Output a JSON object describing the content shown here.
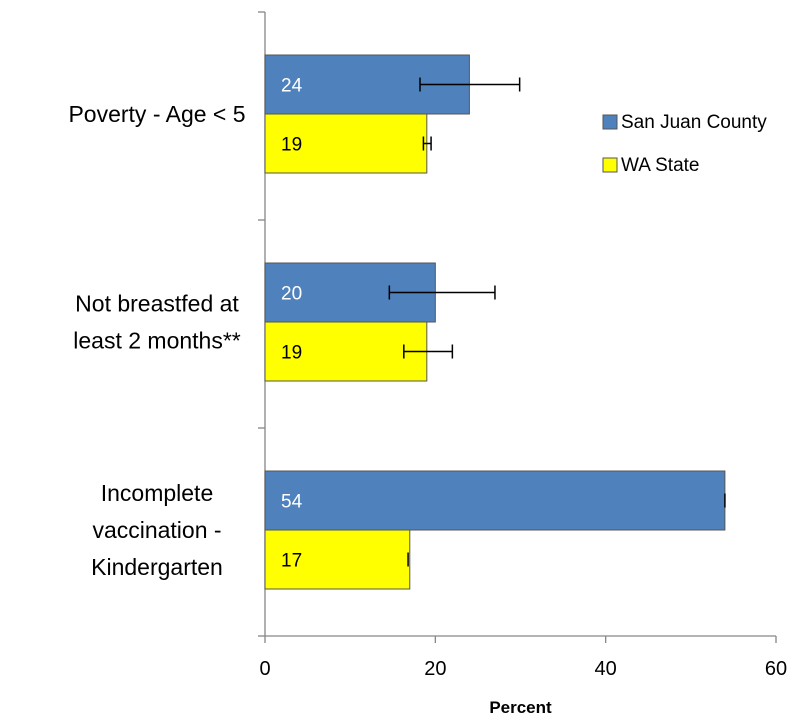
{
  "chart_data": {
    "type": "bar",
    "orientation": "horizontal",
    "categories": [
      [
        "Poverty - Age < 5"
      ],
      [
        "Not breastfed at",
        "least 2 months**"
      ],
      [
        "Incomplete",
        "vaccination -",
        "Kindergarten"
      ]
    ],
    "series": [
      {
        "name": "San Juan County",
        "color": "#4f81bd",
        "label_color": "#ffffff",
        "values": [
          24,
          20,
          54
        ],
        "error_low": [
          18.2,
          14.6,
          54
        ],
        "error_high": [
          29.9,
          27.0,
          54
        ]
      },
      {
        "name": "WA State",
        "color": "#ffff00",
        "label_color": "#000000",
        "values": [
          19,
          19,
          17
        ],
        "error_low": [
          18.6,
          16.3,
          16.8
        ],
        "error_high": [
          19.5,
          22.0,
          16.8
        ]
      }
    ],
    "xlabel": "Percent",
    "ylabel": "",
    "xlim": [
      0,
      60
    ],
    "xticks": [
      "0",
      "20",
      "40",
      "60"
    ],
    "grid": false,
    "legend_position": "right"
  }
}
